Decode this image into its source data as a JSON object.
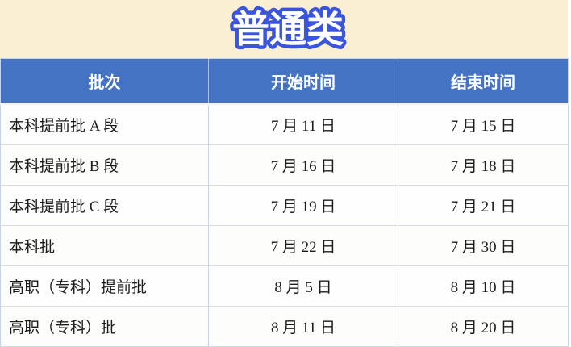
{
  "title": "普通类",
  "colors": {
    "page_background": "#FBEFD3",
    "header_background": "#4573C4",
    "title_fill": "#FFFFFF",
    "title_outline": "#3B54DC",
    "cell_background": "#FEFEFE",
    "grid_vertical": "#C6D4EA",
    "grid_horizontal": "#D9DDE3"
  },
  "table": {
    "headers": [
      "批次",
      "开始时间",
      "结束时间"
    ],
    "rows": [
      {
        "batch": "本科提前批 A 段",
        "start": "7 月 11 日",
        "end": "7 月 15 日"
      },
      {
        "batch": "本科提前批 B 段",
        "start": "7 月 16 日",
        "end": "7 月 18 日"
      },
      {
        "batch": "本科提前批 C 段",
        "start": "7 月 19 日",
        "end": "7 月 21 日"
      },
      {
        "batch": "本科批",
        "start": "7 月 22 日",
        "end": "7 月 30 日"
      },
      {
        "batch": "高职（专科）提前批",
        "start": "8 月 5 日",
        "end": "8 月 10 日"
      },
      {
        "batch": "高职（专科）批",
        "start": "8 月 11 日",
        "end": "8 月 20 日"
      }
    ]
  }
}
